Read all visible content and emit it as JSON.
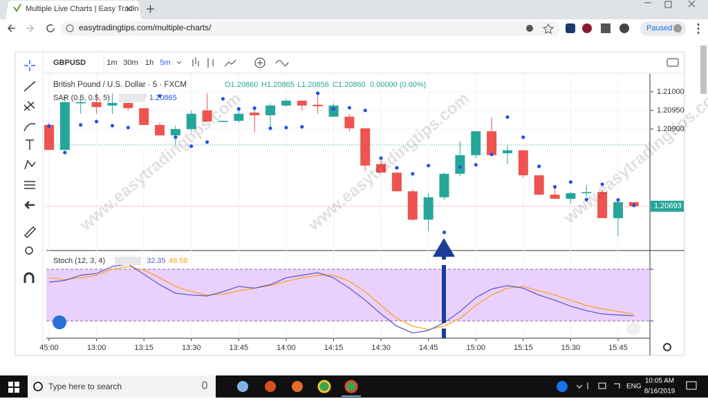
{
  "browser": {
    "tab_title": "Multiple Live Charts | Easy Tradin",
    "url": "easytradingtips.com/multiple-charts/",
    "profile_status": "Paused"
  },
  "toolbar": {
    "symbol": "GBPUSD",
    "intervals": [
      "1m",
      "30m",
      "1h",
      "5m"
    ]
  },
  "legend": {
    "title": "British Pound / U.S. Dollar · 5 · FXCM",
    "open": "O1.20860",
    "high": "H1.20865",
    "low": "L1.20856",
    "close": "C1.20860",
    "change": "0.00000 (0.00%)"
  },
  "chart_data": {
    "type": "candlestick",
    "categories": [
      "45:00",
      null,
      null,
      "13:00",
      null,
      null,
      "13:15",
      null,
      null,
      "13:30",
      null,
      null,
      "13:45",
      null,
      null,
      "14:00",
      null,
      null,
      "14:15",
      null,
      null,
      "14:30",
      null,
      null,
      "14:45",
      null,
      null,
      "15:00",
      null,
      null,
      "15:15",
      null,
      null,
      "15:30",
      null,
      null,
      "15:45",
      null
    ],
    "open": [
      1.20911,
      1.20844,
      1.20969,
      1.20972,
      1.20963,
      1.2097,
      1.20956,
      1.20911,
      1.20883,
      1.209,
      1.2095,
      1.20919,
      1.20922,
      1.20944,
      1.20937,
      1.20963,
      1.20976,
      1.20965,
      1.20933,
      1.20933,
      1.20902,
      1.20806,
      1.20783,
      1.20733,
      1.20657,
      1.20717,
      1.2078,
      1.2083,
      1.20894,
      1.20835,
      1.20843,
      1.20776,
      1.20724,
      1.20713,
      1.20728,
      1.20731,
      1.20661,
      1.20704
    ],
    "high": [
      1.20917,
      1.20987,
      1.20987,
      1.20996,
      1.20996,
      1.2097,
      1.20956,
      1.20917,
      1.20909,
      1.2095,
      1.20996,
      1.20922,
      1.2095,
      1.20959,
      1.20969,
      1.20981,
      1.20976,
      1.20996,
      1.20969,
      1.20941,
      1.20902,
      1.20817,
      1.20783,
      1.20737,
      1.20728,
      1.20783,
      1.20867,
      1.20894,
      1.20932,
      1.20857,
      1.20843,
      1.20776,
      1.2075,
      1.20731,
      1.2075,
      1.20737,
      1.2071,
      1.20704
    ],
    "low": [
      1.20844,
      1.20844,
      1.20941,
      1.20941,
      1.20941,
      1.2095,
      1.20911,
      1.20883,
      1.20857,
      1.20894,
      1.2092,
      1.20919,
      1.20917,
      1.20891,
      1.20898,
      1.20959,
      1.2095,
      1.20941,
      1.20933,
      1.20894,
      1.20787,
      1.20783,
      1.20733,
      1.20654,
      1.20626,
      1.2071,
      1.20774,
      1.20821,
      1.2083,
      1.20806,
      1.20769,
      1.20724,
      1.20713,
      1.207,
      1.20719,
      1.20661,
      1.20613,
      1.20693
    ],
    "close": [
      1.20844,
      1.20972,
      1.20972,
      1.20959,
      1.2097,
      1.20956,
      1.20911,
      1.20883,
      1.209,
      1.20941,
      1.2092,
      1.20922,
      1.20941,
      1.20937,
      1.20963,
      1.20976,
      1.20963,
      1.20961,
      1.20963,
      1.20902,
      1.20802,
      1.20783,
      1.20733,
      1.20657,
      1.20717,
      1.2078,
      1.2083,
      1.20894,
      1.2083,
      1.20843,
      1.20776,
      1.20724,
      1.20713,
      1.20728,
      1.20731,
      1.20661,
      1.20704,
      1.20693
    ],
    "up_color": "#26a69a",
    "down_color": "#ef5350",
    "ylim": [
      1.20576,
      1.21048
    ],
    "yticks": [
      {
        "value": 1.21,
        "label": "1.21000"
      },
      {
        "value": 1.2095,
        "label": "1.20950"
      },
      {
        "value": 1.209,
        "label": "1.20900"
      }
    ],
    "last_price": {
      "value": 1.20693,
      "label": "1.20693"
    },
    "sar": {
      "name": "SAR (0.5, 0.5, 5)",
      "value_label": "1.20865",
      "color": "#1e53e5",
      "values": [
        1.20908,
        1.20837,
        1.20911,
        1.2092,
        1.20909,
        1.20904,
        1.20989,
        1.20989,
        1.20878,
        1.20854,
        1.20865,
        1.20981,
        1.20954,
        1.20956,
        1.20902,
        1.20904,
        1.20906,
        1.20996,
        1.20954,
        1.20957,
        1.2095,
        1.20822,
        1.20796,
        1.2078,
        1.20802,
        1.20623,
        1.20798,
        1.20804,
        1.20832,
        1.20932,
        1.20878,
        1.208,
        1.20745,
        1.20758,
        1.20711,
        1.20752,
        1.2071,
        1.20695
      ]
    },
    "grid": true
  },
  "stoch": {
    "type": "line",
    "title": "Stoch (12, 3, 4)",
    "ylim": [
      0,
      100
    ],
    "levels": [
      20,
      80
    ],
    "band_color": "#e6c8fb",
    "series": [
      {
        "color": "#5c5cc8",
        "value_label": "32.35",
        "values": [
          65,
          67,
          73,
          75,
          83,
          86,
          74,
          62,
          52,
          50,
          49,
          54,
          60,
          58,
          62,
          70,
          73,
          76,
          70,
          58,
          44,
          28,
          14,
          6,
          9,
          18,
          31,
          47,
          57,
          61,
          58,
          50,
          44,
          37,
          32,
          28,
          27,
          26
        ]
      },
      {
        "color": "#f5a623",
        "value_label": "48.58",
        "values": [
          70,
          68,
          70,
          73,
          80,
          83,
          79,
          70,
          60,
          54,
          50,
          51,
          55,
          58,
          61,
          66,
          70,
          73,
          73,
          66,
          54,
          38,
          23,
          14,
          10,
          14,
          23,
          38,
          50,
          58,
          60,
          55,
          50,
          44,
          38,
          34,
          31,
          28
        ]
      }
    ]
  },
  "watermark": "www.easytradingtips.com",
  "taskbar": {
    "search": "Type here to search",
    "language": "ENG",
    "time": "10:05 AM",
    "date": "8/16/2019"
  }
}
